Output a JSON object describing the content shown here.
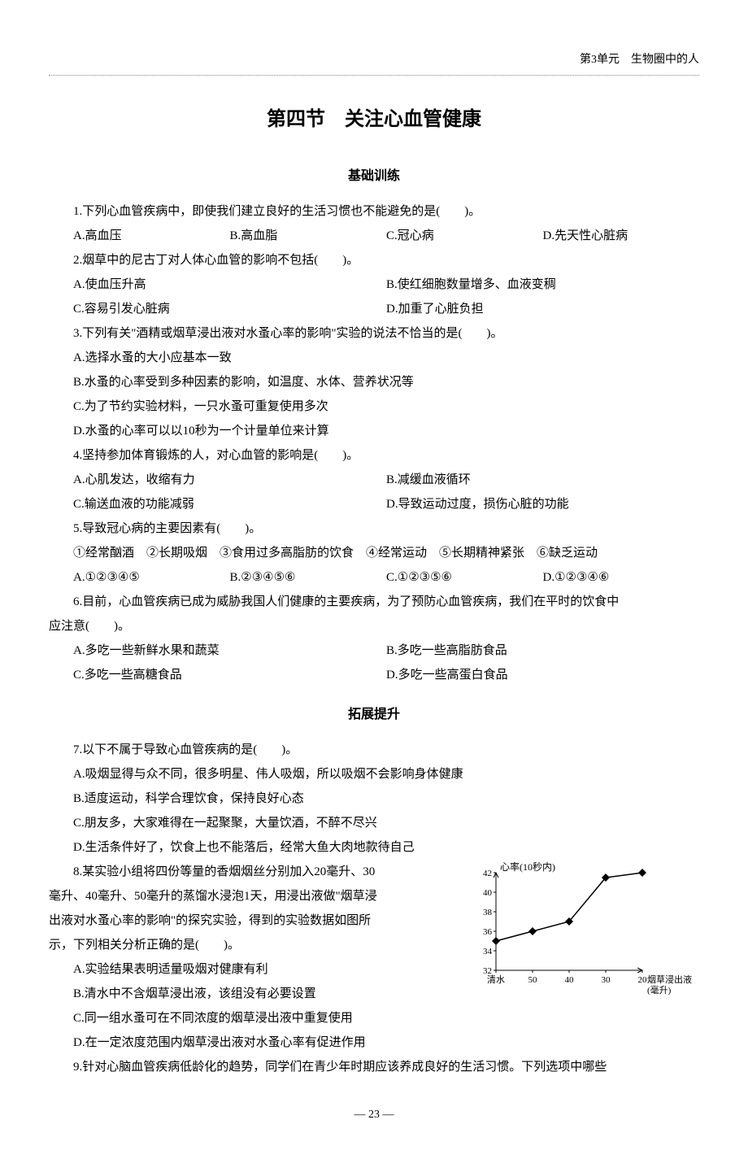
{
  "header": {
    "unit_label": "第3单元　生物圈中的人"
  },
  "title": "第四节　关注心血管健康",
  "sections": {
    "basic": "基础训练",
    "extend": "拓展提升"
  },
  "q1": {
    "stem": "1.下列心血管疾病中，即使我们建立良好的生活习惯也不能避免的是(　　)。",
    "a": "A.高血压",
    "b": "B.高血脂",
    "c": "C.冠心病",
    "d": "D.先天性心脏病"
  },
  "q2": {
    "stem": "2.烟草中的尼古丁对人体心血管的影响不包括(　　)。",
    "a": "A.使血压升高",
    "b": "B.使红细胞数量增多、血液变稠",
    "c": "C.容易引发心脏病",
    "d": "D.加重了心脏负担"
  },
  "q3": {
    "stem": "3.下列有关\"酒精或烟草浸出液对水蚤心率的影响\"实验的说法不恰当的是(　　)。",
    "a": "A.选择水蚤的大小应基本一致",
    "b": "B.水蚤的心率受到多种因素的影响，如温度、水体、营养状况等",
    "c": "C.为了节约实验材料，一只水蚤可重复使用多次",
    "d": "D.水蚤的心率可以以10秒为一个计量单位来计算"
  },
  "q4": {
    "stem": "4.坚持参加体育锻炼的人，对心血管的影响是(　　)。",
    "a": "A.心肌发达，收缩有力",
    "b": "B.减缓血液循环",
    "c": "C.输送血液的功能减弱",
    "d": "D.导致运动过度，损伤心脏的功能"
  },
  "q5": {
    "stem": "5.导致冠心病的主要因素有(　　)。",
    "items": "①经常酗酒　②长期吸烟　③食用过多高脂肪的饮食　④经常运动　⑤长期精神紧张　⑥缺乏运动",
    "a": "A.①②③④⑤",
    "b": "B.②③④⑤⑥",
    "c": "C.①②③⑤⑥",
    "d": "D.①②③④⑥"
  },
  "q6": {
    "stem1": "6.目前，心血管疾病已成为威胁我国人们健康的主要疾病，为了预防心血管疾病，我们在平时的饮食中",
    "stem2": "应注意(　　)。",
    "a": "A.多吃一些新鲜水果和蔬菜",
    "b": "B.多吃一些高脂肪食品",
    "c": "C.多吃一些高糖食品",
    "d": "D.多吃一些高蛋白食品"
  },
  "q7": {
    "stem": "7.以下不属于导致心血管疾病的是(　　)。",
    "a": "A.吸烟显得与众不同，很多明星、伟人吸烟，所以吸烟不会影响身体健康",
    "b": "B.适度运动，科学合理饮食，保持良好心态",
    "c": "C.朋友多，大家难得在一起聚聚，大量饮酒，不醉不尽兴",
    "d": "D.生活条件好了，饮食上也不能落后，经常大鱼大肉地款待自己"
  },
  "q8": {
    "stem1": "8.某实验小组将四份等量的香烟烟丝分别加入20毫升、30",
    "stem2": "毫升、40毫升、50毫升的蒸馏水浸泡1天，用浸出液做\"烟草浸",
    "stem3": "出液对水蚤心率的影响\"的探究实验，得到的实验数据如图所",
    "stem4": "示，下列相关分析正确的是(　　)。",
    "a": "A.实验结果表明适量吸烟对健康有利",
    "b": "B.清水中不含烟草浸出液，该组没有必要设置",
    "c": "C.同一组水蚤可在不同浓度的烟草浸出液中重复使用",
    "d": "D.在一定浓度范围内烟草浸出液对水蚤心率有促进作用",
    "chart": {
      "type": "line",
      "title": "心率(10秒内)",
      "x_label": "烟草浸出液\n(毫升)",
      "x_ticks": [
        "清水",
        "50",
        "40",
        "30",
        "20"
      ],
      "y_ticks": [
        32,
        34,
        36,
        38,
        40,
        42
      ],
      "y_min": 32,
      "y_max": 42,
      "points_y": [
        35,
        36,
        37,
        41.5,
        42
      ],
      "line_color": "#000000",
      "marker": "diamond",
      "marker_size": 5,
      "axis_color": "#000000",
      "font_size": 11
    }
  },
  "q9": {
    "stem": "9.针对心脑血管疾病低龄化的趋势，同学们在青少年时期应该养成良好的生活习惯。下列选项中哪些"
  },
  "footer": {
    "page": "— 23 —"
  }
}
